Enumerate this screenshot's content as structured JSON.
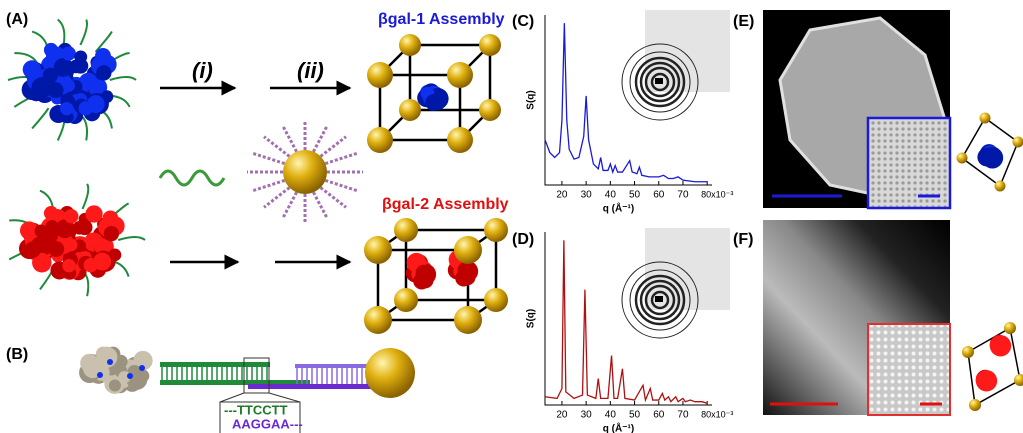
{
  "panel_labels": [
    "(A)",
    "(B)",
    "(C)",
    "(D)",
    "(E)",
    "(F)"
  ],
  "panel_a": {
    "step_1": "(i)",
    "step_2": "(ii)",
    "assembly_1": "βgal-1 Assembly",
    "assembly_2": "βgal-2 Assembly"
  },
  "panel_b": {
    "strand_top": "---TTCCTT",
    "strand_bottom": "AAGGAA---"
  },
  "plots": [
    {
      "type": "line",
      "y_label": "S(q)",
      "x_label": "q (Å⁻¹)",
      "color": "#1a1ad8",
      "x": [
        13,
        15,
        17,
        19,
        20,
        21,
        22,
        23,
        25,
        27,
        29,
        30,
        31,
        33,
        35,
        36,
        37,
        39,
        40,
        41,
        42,
        43,
        45,
        48,
        49,
        51,
        52,
        53,
        56,
        60,
        62,
        64,
        66,
        68,
        70,
        75,
        80
      ],
      "values": [
        0.28,
        0.2,
        0.17,
        0.2,
        0.4,
        1.0,
        0.4,
        0.22,
        0.16,
        0.17,
        0.3,
        0.55,
        0.28,
        0.13,
        0.1,
        0.17,
        0.09,
        0.09,
        0.13,
        0.08,
        0.12,
        0.08,
        0.08,
        0.15,
        0.08,
        0.07,
        0.11,
        0.06,
        0.05,
        0.05,
        0.06,
        0.04,
        0.04,
        0.05,
        0.03,
        0.02,
        0.02
      ],
      "xlim": [
        13,
        82
      ],
      "ylim": [
        0,
        1.05
      ],
      "xticks": [
        20,
        30,
        40,
        50,
        60,
        70,
        {
          "value": 80,
          "label": "80x10⁻³"
        }
      ]
    },
    {
      "type": "line",
      "y_label": "S(q)",
      "x_label": "q (Å⁻¹)",
      "color": "#b01010",
      "x": [
        13,
        18,
        20,
        20.8,
        21.6,
        25,
        28.5,
        29.5,
        30.5,
        34,
        35,
        36,
        39,
        40.5,
        41.5,
        43,
        45,
        46,
        50,
        53.5,
        54.5,
        56.5,
        57.5,
        60,
        61.5,
        62.5,
        64,
        65,
        67,
        68,
        70,
        71,
        73,
        75,
        78,
        80
      ],
      "values": [
        0.05,
        0.04,
        0.1,
        1.0,
        0.08,
        0.04,
        0.06,
        0.7,
        0.06,
        0.04,
        0.16,
        0.04,
        0.04,
        0.3,
        0.04,
        0.04,
        0.22,
        0.04,
        0.03,
        0.12,
        0.03,
        0.1,
        0.03,
        0.03,
        0.07,
        0.03,
        0.05,
        0.02,
        0.05,
        0.02,
        0.04,
        0.02,
        0.03,
        0.02,
        0.02,
        0.01
      ],
      "xlim": [
        13,
        82
      ],
      "ylim": [
        0,
        1.05
      ],
      "xticks": [
        20,
        30,
        40,
        50,
        60,
        70,
        {
          "value": 80,
          "label": "80x10⁻³"
        }
      ]
    }
  ]
}
